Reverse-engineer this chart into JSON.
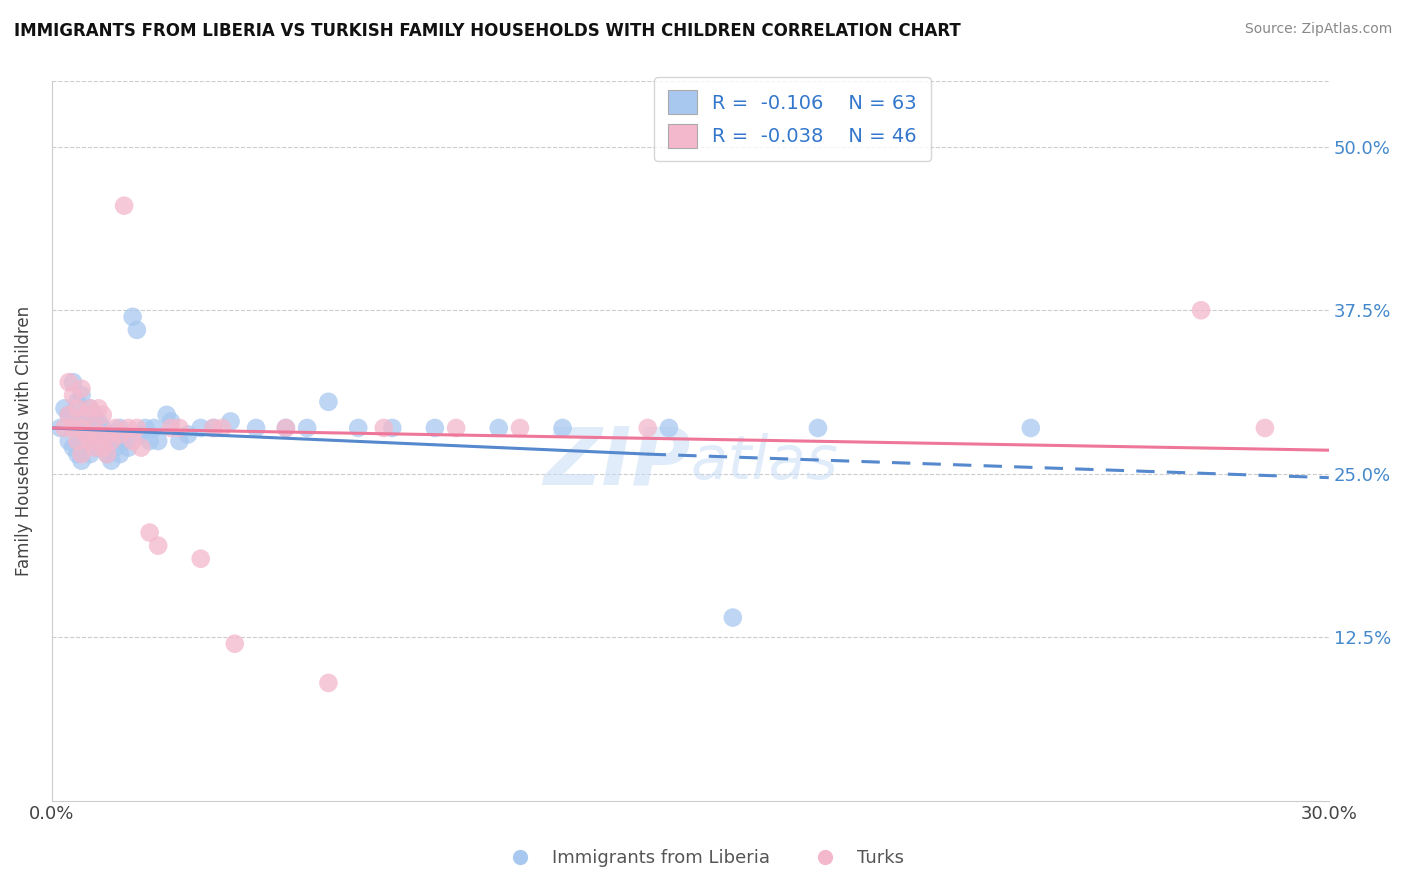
{
  "title": "IMMIGRANTS FROM LIBERIA VS TURKISH FAMILY HOUSEHOLDS WITH CHILDREN CORRELATION CHART",
  "source": "Source: ZipAtlas.com",
  "ylabel": "Family Households with Children",
  "xmin": 0.0,
  "xmax": 0.3,
  "ymin": 0.0,
  "ymax": 0.55,
  "ytick_labels": [
    "12.5%",
    "25.0%",
    "37.5%",
    "50.0%"
  ],
  "ytick_values": [
    0.125,
    0.25,
    0.375,
    0.5
  ],
  "xtick_labels": [
    "0.0%",
    "30.0%"
  ],
  "xtick_values": [
    0.0,
    0.3
  ],
  "color_blue": "#a8c8f0",
  "color_pink": "#f4b8cc",
  "line_blue": "#5588cc",
  "line_pink": "#ee7799",
  "legend_R1": "R =  -0.106",
  "legend_N1": "N = 63",
  "legend_R2": "R =  -0.038",
  "legend_N2": "N = 46",
  "legend_label1": "Immigrants from Liberia",
  "legend_label2": "Turks",
  "background_color": "#ffffff",
  "grid_color": "#cccccc",
  "blue_scatter": [
    [
      0.002,
      0.285
    ],
    [
      0.003,
      0.3
    ],
    [
      0.004,
      0.295
    ],
    [
      0.004,
      0.275
    ],
    [
      0.005,
      0.32
    ],
    [
      0.005,
      0.285
    ],
    [
      0.005,
      0.27
    ],
    [
      0.006,
      0.305
    ],
    [
      0.006,
      0.29
    ],
    [
      0.006,
      0.265
    ],
    [
      0.007,
      0.31
    ],
    [
      0.007,
      0.28
    ],
    [
      0.007,
      0.27
    ],
    [
      0.007,
      0.26
    ],
    [
      0.008,
      0.295
    ],
    [
      0.008,
      0.285
    ],
    [
      0.008,
      0.275
    ],
    [
      0.009,
      0.3
    ],
    [
      0.009,
      0.28
    ],
    [
      0.009,
      0.265
    ],
    [
      0.01,
      0.295
    ],
    [
      0.01,
      0.285
    ],
    [
      0.01,
      0.275
    ],
    [
      0.011,
      0.29
    ],
    [
      0.011,
      0.27
    ],
    [
      0.012,
      0.285
    ],
    [
      0.012,
      0.275
    ],
    [
      0.013,
      0.28
    ],
    [
      0.013,
      0.265
    ],
    [
      0.014,
      0.275
    ],
    [
      0.014,
      0.26
    ],
    [
      0.015,
      0.27
    ],
    [
      0.016,
      0.285
    ],
    [
      0.016,
      0.265
    ],
    [
      0.017,
      0.275
    ],
    [
      0.018,
      0.27
    ],
    [
      0.019,
      0.37
    ],
    [
      0.02,
      0.36
    ],
    [
      0.021,
      0.28
    ],
    [
      0.022,
      0.285
    ],
    [
      0.023,
      0.275
    ],
    [
      0.024,
      0.285
    ],
    [
      0.025,
      0.275
    ],
    [
      0.027,
      0.295
    ],
    [
      0.028,
      0.29
    ],
    [
      0.03,
      0.275
    ],
    [
      0.032,
      0.28
    ],
    [
      0.035,
      0.285
    ],
    [
      0.038,
      0.285
    ],
    [
      0.042,
      0.29
    ],
    [
      0.048,
      0.285
    ],
    [
      0.055,
      0.285
    ],
    [
      0.06,
      0.285
    ],
    [
      0.065,
      0.305
    ],
    [
      0.072,
      0.285
    ],
    [
      0.08,
      0.285
    ],
    [
      0.09,
      0.285
    ],
    [
      0.105,
      0.285
    ],
    [
      0.12,
      0.285
    ],
    [
      0.145,
      0.285
    ],
    [
      0.16,
      0.14
    ],
    [
      0.18,
      0.285
    ],
    [
      0.23,
      0.285
    ]
  ],
  "pink_scatter": [
    [
      0.003,
      0.285
    ],
    [
      0.004,
      0.32
    ],
    [
      0.004,
      0.295
    ],
    [
      0.005,
      0.31
    ],
    [
      0.005,
      0.285
    ],
    [
      0.006,
      0.3
    ],
    [
      0.006,
      0.275
    ],
    [
      0.007,
      0.315
    ],
    [
      0.007,
      0.285
    ],
    [
      0.007,
      0.265
    ],
    [
      0.008,
      0.295
    ],
    [
      0.008,
      0.28
    ],
    [
      0.009,
      0.3
    ],
    [
      0.009,
      0.275
    ],
    [
      0.01,
      0.285
    ],
    [
      0.01,
      0.27
    ],
    [
      0.011,
      0.3
    ],
    [
      0.011,
      0.28
    ],
    [
      0.012,
      0.295
    ],
    [
      0.012,
      0.27
    ],
    [
      0.013,
      0.28
    ],
    [
      0.013,
      0.265
    ],
    [
      0.014,
      0.275
    ],
    [
      0.015,
      0.285
    ],
    [
      0.016,
      0.28
    ],
    [
      0.017,
      0.455
    ],
    [
      0.018,
      0.285
    ],
    [
      0.019,
      0.275
    ],
    [
      0.02,
      0.285
    ],
    [
      0.021,
      0.27
    ],
    [
      0.023,
      0.205
    ],
    [
      0.025,
      0.195
    ],
    [
      0.028,
      0.285
    ],
    [
      0.03,
      0.285
    ],
    [
      0.035,
      0.185
    ],
    [
      0.038,
      0.285
    ],
    [
      0.04,
      0.285
    ],
    [
      0.043,
      0.12
    ],
    [
      0.055,
      0.285
    ],
    [
      0.065,
      0.09
    ],
    [
      0.078,
      0.285
    ],
    [
      0.095,
      0.285
    ],
    [
      0.11,
      0.285
    ],
    [
      0.14,
      0.285
    ],
    [
      0.27,
      0.375
    ],
    [
      0.285,
      0.285
    ]
  ]
}
